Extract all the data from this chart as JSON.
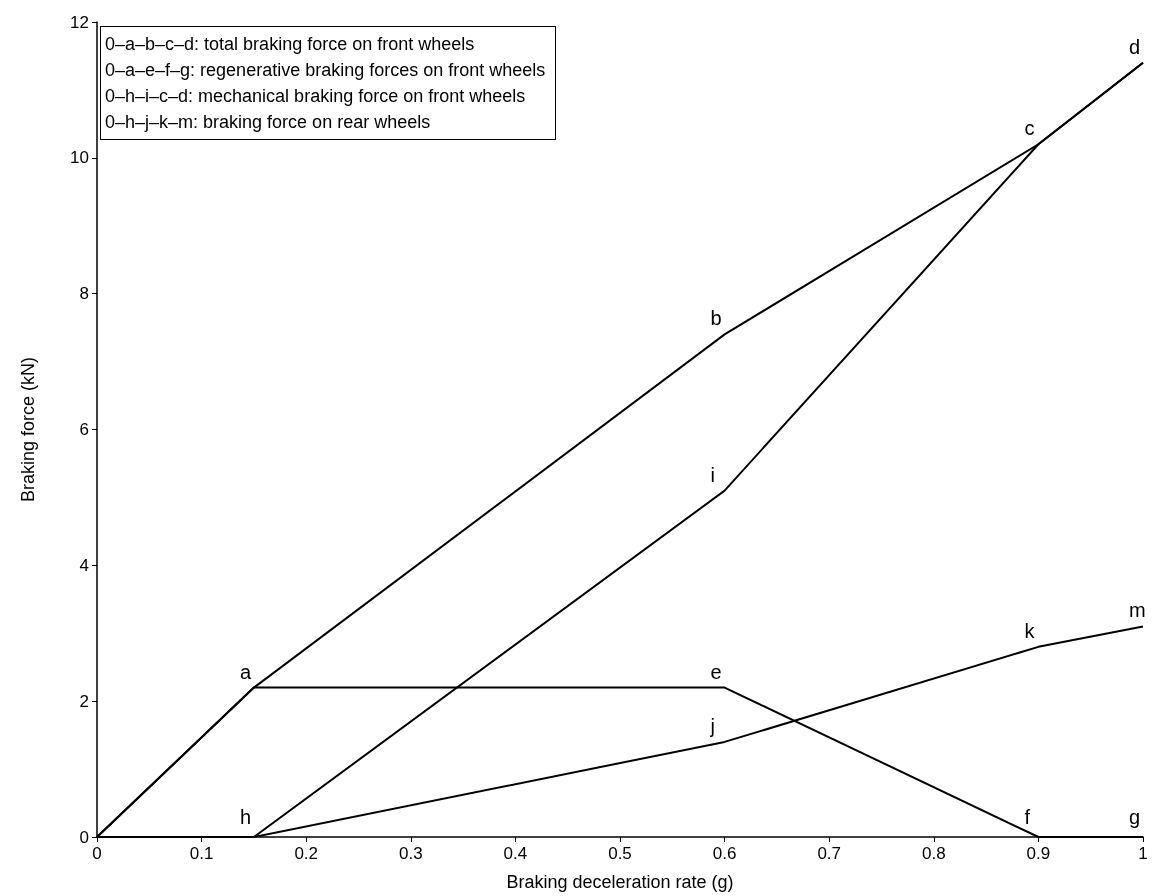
{
  "chart_data": {
    "type": "line",
    "xlabel": "Braking deceleration rate (g)",
    "ylabel": "Braking force (kN)",
    "xlim": [
      0,
      1
    ],
    "xticks": [
      0,
      0.1,
      0.2,
      0.3,
      0.4,
      0.5,
      0.6,
      0.7,
      0.8,
      0.9,
      1
    ],
    "ylim": [
      0,
      12
    ],
    "yticks": [
      0,
      2,
      4,
      6,
      8,
      10,
      12
    ],
    "grid": false,
    "marker": "none",
    "line_style": "solid",
    "series": [
      {
        "color": "#000000",
        "x": [
          0,
          0.15,
          0.6,
          0.9,
          1
        ],
        "values": [
          0,
          2.2,
          7.4,
          10.2,
          11.4
        ]
      },
      {
        "color": "#000000",
        "x": [
          0,
          0.15,
          0.6,
          0.9,
          1
        ],
        "values": [
          0,
          2.2,
          2.2,
          0,
          0
        ]
      },
      {
        "color": "#000000",
        "x": [
          0,
          0.15,
          0.6,
          0.9,
          1
        ],
        "values": [
          0,
          0,
          5.1,
          10.2,
          11.4
        ]
      },
      {
        "color": "#000000",
        "x": [
          0,
          0.15,
          0.6,
          0.9,
          1
        ],
        "values": [
          0,
          0,
          1.4,
          2.8,
          3.1
        ]
      }
    ],
    "annotations": [
      "0–a–b–c–d: total braking force on front wheels",
      "0–a–e–f–g: regenerative braking forces on front wheels",
      "0–h–i–c–d: mechanical braking force on front wheels",
      "0–h–j–k–m: braking force on rear wheels",
      {
        "text": "a",
        "x": 0.15,
        "y": 2.2
      },
      {
        "text": "b",
        "x": 0.6,
        "y": 7.4
      },
      {
        "text": "c",
        "x": 0.9,
        "y": 10.2
      },
      {
        "text": "d",
        "x": 1,
        "y": 11.4
      },
      {
        "text": "e",
        "x": 0.6,
        "y": 2.2
      },
      {
        "text": "f",
        "x": 0.9,
        "y": 0
      },
      {
        "text": "g",
        "x": 1,
        "y": 0
      },
      {
        "text": "h",
        "x": 0.15,
        "y": 0
      },
      {
        "text": "i",
        "x": 0.6,
        "y": 5.1
      },
      {
        "text": "j",
        "x": 0.6,
        "y": 1.4
      },
      {
        "text": "k",
        "x": 0.9,
        "y": 2.8
      },
      {
        "text": "m",
        "x": 1,
        "y": 3.1
      }
    ]
  }
}
